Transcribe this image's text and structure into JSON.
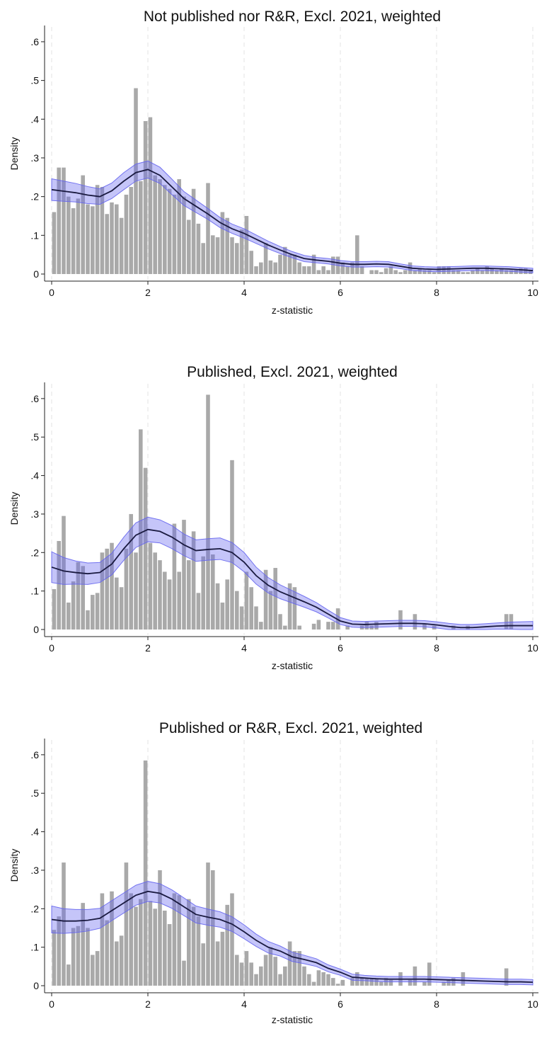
{
  "chart_data": [
    {
      "type": "bar",
      "title": "Not published nor R&R, Excl. 2021, weighted",
      "xlabel": "z-statistic",
      "ylabel": "Density",
      "xlim": [
        0,
        10
      ],
      "ylim": [
        0,
        0.62
      ],
      "xticks": [
        "0",
        "2",
        "4",
        "6",
        "8",
        "10"
      ],
      "yticks": [
        "0",
        ".1",
        ".2",
        ".3",
        ".4",
        ".5",
        ".6"
      ],
      "grid": "vertical dashed at x ticks",
      "colors": {
        "bars": "#a9a9a9",
        "line": "#1a1a40",
        "band": "#6666ee"
      },
      "series": [
        {
          "type": "histogram",
          "bin_width": 0.1,
          "values": [
            0.16,
            0.275,
            0.275,
            0.2,
            0.17,
            0.195,
            0.255,
            0.18,
            0.175,
            0.23,
            0.225,
            0.155,
            0.185,
            0.18,
            0.145,
            0.205,
            0.225,
            0.48,
            0.24,
            0.395,
            0.405,
            0.255,
            0.245,
            0.23,
            0.22,
            0.205,
            0.245,
            0.2,
            0.14,
            0.22,
            0.13,
            0.08,
            0.235,
            0.1,
            0.095,
            0.16,
            0.145,
            0.095,
            0.08,
            0.115,
            0.15,
            0.06,
            0.02,
            0.03,
            0.08,
            0.035,
            0.03,
            0.05,
            0.07,
            0.05,
            0.05,
            0.03,
            0.02,
            0.02,
            0.05,
            0.01,
            0.02,
            0.01,
            0.045,
            0.045,
            0.03,
            0.02,
            0.03,
            0.1,
            0.02,
            0.0,
            0.01,
            0.01,
            0.005,
            0.015,
            0.02,
            0.01,
            0.005,
            0.01,
            0.03,
            0.01,
            0.015,
            0.01,
            0.01,
            0.005,
            0.02,
            0.02,
            0.02,
            0.01,
            0.01,
            0.005,
            0.005,
            0.01,
            0.015,
            0.01,
            0.02,
            0.015,
            0.01,
            0.015,
            0.01,
            0.01,
            0.01,
            0.015,
            0.015,
            0.01
          ]
        },
        {
          "type": "kernel_density",
          "x": [
            0,
            0.25,
            0.5,
            0.75,
            1,
            1.25,
            1.5,
            1.75,
            2,
            2.25,
            2.5,
            2.75,
            3,
            3.25,
            3.5,
            3.75,
            4,
            4.25,
            4.5,
            4.75,
            5,
            5.25,
            5.5,
            5.75,
            6,
            6.25,
            6.5,
            6.75,
            7,
            7.25,
            7.5,
            7.75,
            8,
            8.25,
            8.5,
            8.75,
            9,
            9.25,
            9.5,
            9.75,
            10
          ],
          "y": [
            0.218,
            0.214,
            0.21,
            0.204,
            0.2,
            0.215,
            0.24,
            0.262,
            0.27,
            0.255,
            0.225,
            0.195,
            0.175,
            0.155,
            0.133,
            0.117,
            0.105,
            0.09,
            0.075,
            0.062,
            0.05,
            0.04,
            0.036,
            0.033,
            0.028,
            0.025,
            0.025,
            0.026,
            0.025,
            0.02,
            0.015,
            0.013,
            0.012,
            0.013,
            0.014,
            0.015,
            0.015,
            0.014,
            0.013,
            0.011,
            0.009
          ],
          "ci_halfwidth": [
            0.028,
            0.026,
            0.024,
            0.022,
            0.02,
            0.02,
            0.022,
            0.022,
            0.022,
            0.021,
            0.02,
            0.018,
            0.016,
            0.014,
            0.013,
            0.012,
            0.012,
            0.011,
            0.01,
            0.009,
            0.008,
            0.008,
            0.007,
            0.007,
            0.007,
            0.007,
            0.007,
            0.007,
            0.007,
            0.006,
            0.006,
            0.006,
            0.006,
            0.006,
            0.006,
            0.006,
            0.006,
            0.006,
            0.006,
            0.006,
            0.006
          ]
        }
      ]
    },
    {
      "type": "bar",
      "title": "Published, Excl. 2021, weighted",
      "xlabel": "z-statistic",
      "ylabel": "Density",
      "xlim": [
        0,
        10
      ],
      "ylim": [
        0,
        0.62
      ],
      "xticks": [
        "0",
        "2",
        "4",
        "6",
        "8",
        "10"
      ],
      "yticks": [
        "0",
        ".1",
        ".2",
        ".3",
        ".4",
        ".5",
        ".6"
      ],
      "grid": "vertical dashed at x ticks",
      "colors": {
        "bars": "#a9a9a9",
        "line": "#1a1a40",
        "band": "#6666ee"
      },
      "series": [
        {
          "type": "histogram",
          "bin_width": 0.1,
          "values": [
            0.105,
            0.23,
            0.295,
            0.07,
            0.125,
            0.175,
            0.165,
            0.05,
            0.09,
            0.095,
            0.2,
            0.21,
            0.225,
            0.135,
            0.11,
            0.21,
            0.3,
            0.2,
            0.52,
            0.42,
            0.225,
            0.2,
            0.18,
            0.15,
            0.13,
            0.275,
            0.15,
            0.285,
            0.18,
            0.255,
            0.095,
            0.19,
            0.61,
            0.195,
            0.12,
            0.07,
            0.13,
            0.44,
            0.1,
            0.06,
            0.15,
            0.11,
            0.06,
            0.02,
            0.155,
            0.1,
            0.16,
            0.04,
            0.01,
            0.12,
            0.11,
            0.01,
            0.0,
            0.0,
            0.015,
            0.025,
            0.0,
            0.02,
            0.02,
            0.055,
            0.0,
            0.01,
            0.0,
            0.0,
            0.01,
            0.02,
            0.01,
            0.02,
            0.0,
            0.0,
            0.0,
            0.0,
            0.05,
            0.0,
            0.0,
            0.04,
            0.0,
            0.015,
            0.0,
            0.01,
            0.0,
            0.0,
            0.0,
            0.01,
            0.0,
            0.0,
            0.01,
            0.0,
            0.0,
            0.0,
            0.0,
            0.0,
            0.0,
            0.0,
            0.04,
            0.04,
            0.0,
            0.0,
            0.0,
            0.0
          ]
        },
        {
          "type": "kernel_density",
          "x": [
            0,
            0.25,
            0.5,
            0.75,
            1,
            1.25,
            1.5,
            1.75,
            2,
            2.25,
            2.5,
            2.75,
            3,
            3.25,
            3.5,
            3.75,
            4,
            4.25,
            4.5,
            4.75,
            5,
            5.25,
            5.5,
            5.75,
            6,
            6.25,
            6.5,
            6.75,
            7,
            7.25,
            7.5,
            7.75,
            8,
            8.25,
            8.5,
            8.75,
            9,
            9.25,
            9.5,
            9.75,
            10
          ],
          "y": [
            0.162,
            0.152,
            0.148,
            0.145,
            0.148,
            0.17,
            0.21,
            0.245,
            0.26,
            0.255,
            0.24,
            0.22,
            0.205,
            0.208,
            0.21,
            0.2,
            0.175,
            0.14,
            0.115,
            0.098,
            0.085,
            0.072,
            0.058,
            0.04,
            0.022,
            0.014,
            0.013,
            0.014,
            0.015,
            0.016,
            0.016,
            0.015,
            0.012,
            0.008,
            0.005,
            0.005,
            0.007,
            0.009,
            0.01,
            0.01,
            0.01
          ],
          "ci_halfwidth": [
            0.04,
            0.035,
            0.03,
            0.028,
            0.026,
            0.028,
            0.03,
            0.032,
            0.032,
            0.03,
            0.03,
            0.028,
            0.028,
            0.028,
            0.028,
            0.026,
            0.025,
            0.022,
            0.02,
            0.018,
            0.016,
            0.014,
            0.012,
            0.01,
            0.009,
            0.008,
            0.008,
            0.008,
            0.008,
            0.008,
            0.008,
            0.008,
            0.008,
            0.008,
            0.008,
            0.008,
            0.008,
            0.008,
            0.009,
            0.01,
            0.011
          ]
        }
      ]
    },
    {
      "type": "bar",
      "title": "Published or R&R, Excl. 2021, weighted",
      "xlabel": "z-statistic",
      "ylabel": "Density",
      "xlim": [
        0,
        10
      ],
      "ylim": [
        0,
        0.62
      ],
      "xticks": [
        "0",
        "2",
        "4",
        "6",
        "8",
        "10"
      ],
      "yticks": [
        "0",
        ".1",
        ".2",
        ".3",
        ".4",
        ".5",
        ".6"
      ],
      "grid": "vertical dashed at x ticks",
      "colors": {
        "bars": "#a9a9a9",
        "line": "#1a1a40",
        "band": "#6666ee"
      },
      "series": [
        {
          "type": "histogram",
          "bin_width": 0.1,
          "values": [
            0.145,
            0.18,
            0.32,
            0.055,
            0.15,
            0.155,
            0.215,
            0.15,
            0.08,
            0.09,
            0.24,
            0.17,
            0.245,
            0.115,
            0.13,
            0.32,
            0.24,
            0.205,
            0.225,
            0.585,
            0.22,
            0.2,
            0.3,
            0.195,
            0.16,
            0.24,
            0.235,
            0.065,
            0.225,
            0.205,
            0.18,
            0.11,
            0.32,
            0.3,
            0.115,
            0.14,
            0.21,
            0.24,
            0.08,
            0.06,
            0.09,
            0.06,
            0.03,
            0.05,
            0.08,
            0.1,
            0.075,
            0.03,
            0.05,
            0.115,
            0.09,
            0.09,
            0.05,
            0.03,
            0.01,
            0.04,
            0.035,
            0.03,
            0.02,
            0.005,
            0.015,
            0.0,
            0.02,
            0.035,
            0.02,
            0.02,
            0.02,
            0.02,
            0.01,
            0.02,
            0.015,
            0.0,
            0.035,
            0.0,
            0.015,
            0.05,
            0.0,
            0.01,
            0.06,
            0.0,
            0.0,
            0.01,
            0.015,
            0.02,
            0.0,
            0.035,
            0.0,
            0.0,
            0.0,
            0.0,
            0.0,
            0.0,
            0.0,
            0.0,
            0.045,
            0.0,
            0.0,
            0.0,
            0.0,
            0.0
          ]
        },
        {
          "type": "kernel_density",
          "x": [
            0,
            0.25,
            0.5,
            0.75,
            1,
            1.25,
            1.5,
            1.75,
            2,
            2.25,
            2.5,
            2.75,
            3,
            3.25,
            3.5,
            3.75,
            4,
            4.25,
            4.5,
            4.75,
            5,
            5.25,
            5.5,
            5.75,
            6,
            6.25,
            6.5,
            6.75,
            7,
            7.25,
            7.5,
            7.75,
            8,
            8.25,
            8.5,
            8.75,
            9,
            9.25,
            9.5,
            9.75,
            10
          ],
          "y": [
            0.172,
            0.168,
            0.168,
            0.17,
            0.175,
            0.195,
            0.215,
            0.235,
            0.245,
            0.24,
            0.225,
            0.205,
            0.185,
            0.178,
            0.172,
            0.16,
            0.14,
            0.118,
            0.1,
            0.09,
            0.075,
            0.068,
            0.06,
            0.045,
            0.035,
            0.022,
            0.02,
            0.018,
            0.017,
            0.017,
            0.017,
            0.017,
            0.016,
            0.015,
            0.014,
            0.013,
            0.012,
            0.011,
            0.01,
            0.01,
            0.009
          ],
          "ci_halfwidth": [
            0.035,
            0.032,
            0.03,
            0.028,
            0.026,
            0.026,
            0.026,
            0.026,
            0.026,
            0.025,
            0.024,
            0.023,
            0.022,
            0.021,
            0.02,
            0.019,
            0.018,
            0.016,
            0.015,
            0.013,
            0.012,
            0.011,
            0.01,
            0.009,
            0.008,
            0.008,
            0.007,
            0.007,
            0.007,
            0.007,
            0.007,
            0.007,
            0.007,
            0.007,
            0.007,
            0.007,
            0.007,
            0.007,
            0.007,
            0.007,
            0.007
          ]
        }
      ]
    }
  ]
}
